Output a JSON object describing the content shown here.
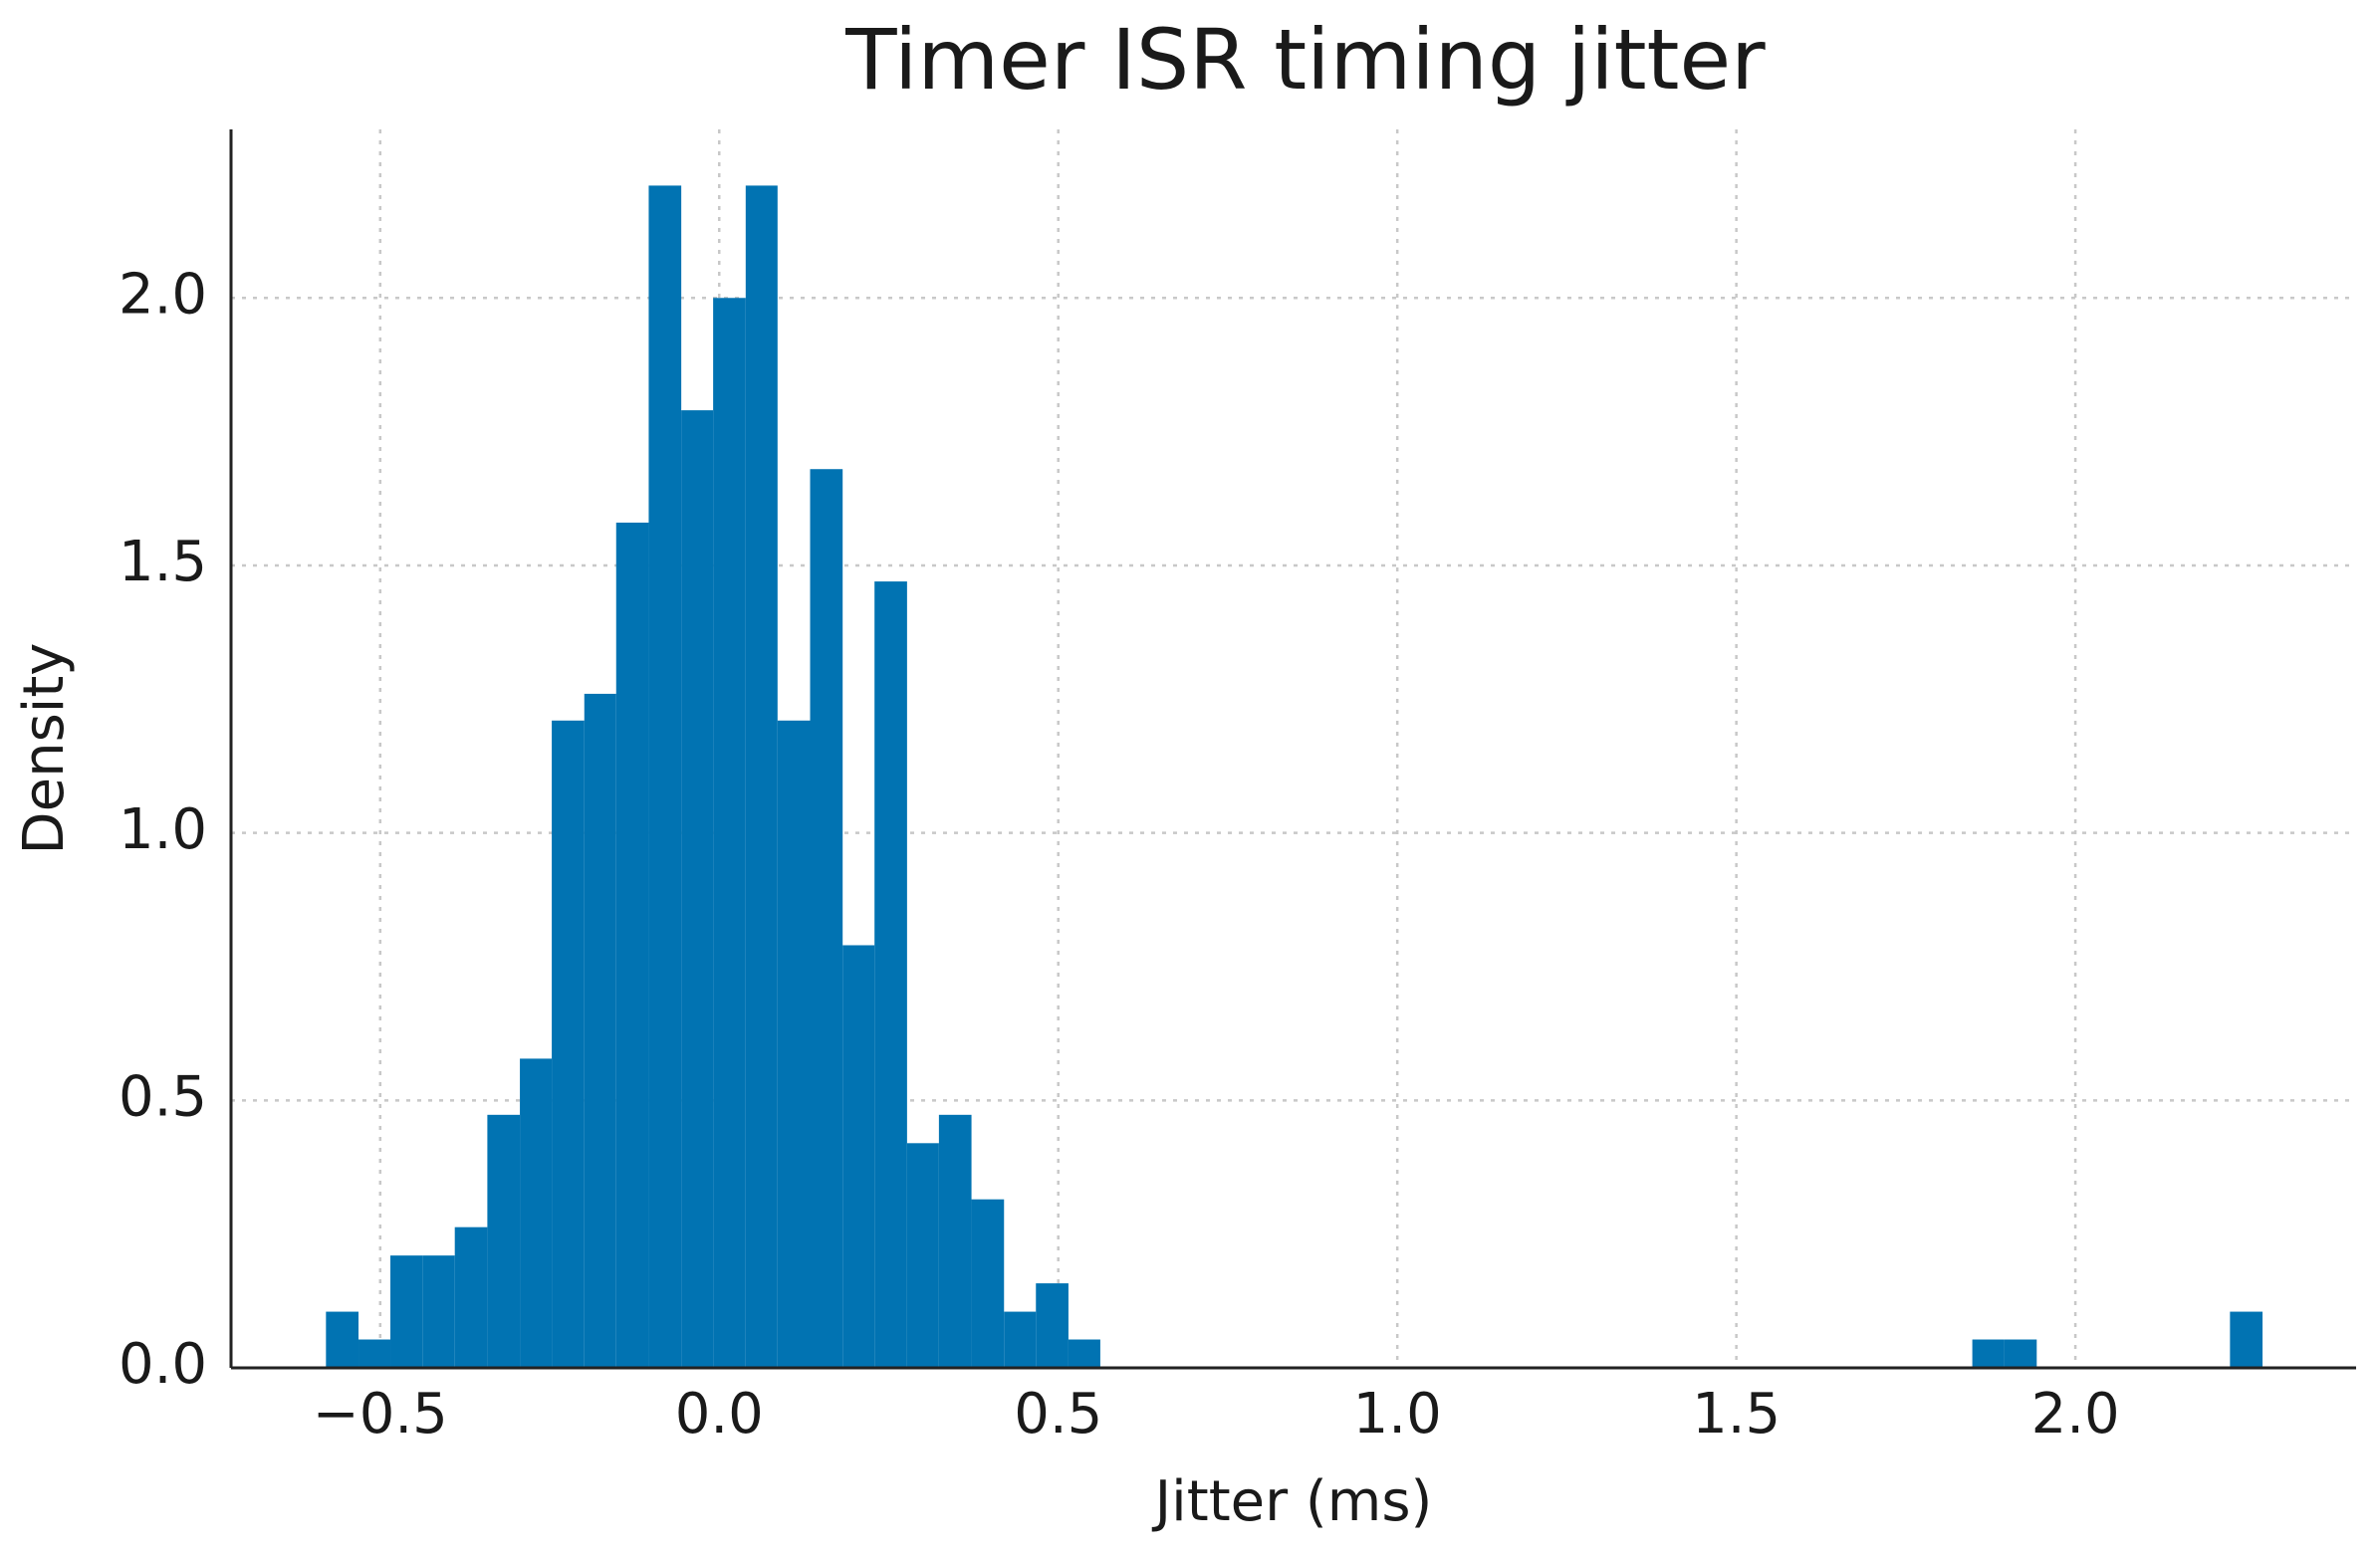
{
  "chart_data": {
    "type": "histogram",
    "title": "Timer ISR timing jitter",
    "x_label": "Jitter (ms)",
    "y_label": "Density",
    "color": "#0173b2",
    "bins": [
      -0.58,
      -0.532,
      -0.485,
      -0.437,
      -0.39,
      -0.342,
      -0.294,
      -0.247,
      -0.199,
      -0.152,
      -0.104,
      -0.056,
      -0.009,
      0.039,
      0.086,
      0.134,
      0.182,
      0.229,
      0.277,
      0.324,
      0.372,
      0.42,
      0.467,
      0.515,
      0.562,
      0.61,
      0.658,
      0.705,
      0.753,
      0.8,
      0.848,
      0.896,
      0.943,
      0.991,
      1.038,
      1.086,
      1.134,
      1.181,
      1.229,
      1.276,
      1.324,
      1.372,
      1.419,
      1.467,
      1.514,
      1.562,
      1.61,
      1.657,
      1.705,
      1.752,
      1.8,
      1.848,
      1.895,
      1.943,
      1.99,
      2.038,
      2.086,
      2.133,
      2.181,
      2.228,
      2.276
    ],
    "values": [
      0.105,
      0.053,
      0.21,
      0.21,
      0.263,
      0.473,
      0.578,
      1.21,
      1.26,
      1.58,
      2.21,
      1.79,
      2.0,
      2.21,
      1.21,
      1.68,
      0.79,
      1.47,
      0.42,
      0.473,
      0.315,
      0.105,
      0.158,
      0.053,
      0,
      0,
      0,
      0,
      0,
      0,
      0,
      0,
      0,
      0,
      0,
      0,
      0,
      0,
      0,
      0,
      0,
      0,
      0,
      0,
      0,
      0,
      0,
      0,
      0,
      0,
      0,
      0.053,
      0.053,
      0,
      0,
      0,
      0,
      0,
      0,
      0.105
    ],
    "xlim": [
      -0.72,
      2.414
    ],
    "ylim": [
      0,
      2.315
    ],
    "xticks": [
      {
        "value": -0.5,
        "label": "−0.5"
      },
      {
        "value": 0,
        "label": "0.0"
      },
      0.5,
      {
        "value": 1,
        "label": "1.0"
      },
      1.5,
      {
        "value": 2,
        "label": "2.0"
      }
    ],
    "yticks": [
      {
        "value": 0,
        "label": "0.0"
      },
      0.5,
      {
        "value": 1,
        "label": "1.0"
      },
      1.5,
      {
        "value": 2,
        "label": "2.0"
      }
    ],
    "grid": true
  }
}
